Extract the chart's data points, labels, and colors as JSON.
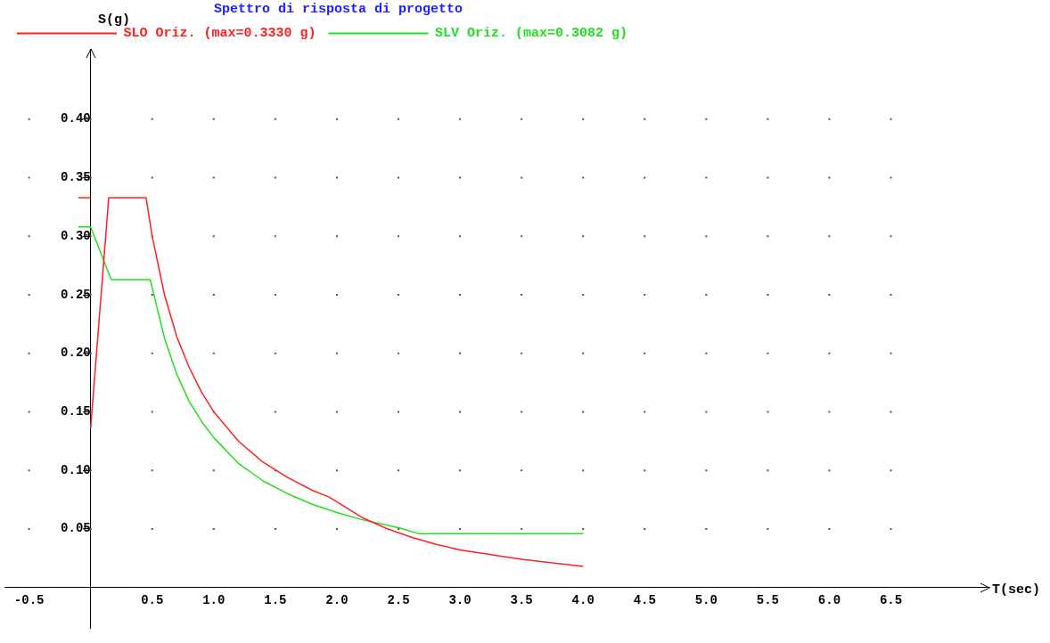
{
  "chart_data": {
    "type": "line",
    "title": "Spettro di risposta di progetto",
    "xlabel": "T(sec)",
    "ylabel": "S(g)",
    "xlim": [
      -0.7,
      7.3
    ],
    "ylim": [
      -0.035,
      0.46
    ],
    "xticks": [
      -0.5,
      {
        "value": 0,
        "label": null
      },
      0.5,
      {
        "value": 1,
        "label": "1.0"
      },
      1.5,
      {
        "value": 2,
        "label": "2.0"
      },
      2.5,
      {
        "value": 3,
        "label": "3.0"
      },
      3.5,
      {
        "value": 4,
        "label": "4.0"
      },
      4.5,
      {
        "value": 5,
        "label": "5.0"
      },
      5.5,
      {
        "value": 6,
        "label": "6.0"
      },
      6.5
    ],
    "yticks": [
      {
        "value": 0,
        "label": null
      },
      0.05,
      {
        "value": 0.1,
        "label": "0.10"
      },
      0.15,
      {
        "value": 0.2,
        "label": "0.20"
      },
      0.25,
      {
        "value": 0.3,
        "label": "0.30"
      },
      0.35,
      {
        "value": 0.4,
        "label": "0.40"
      }
    ],
    "grid": true,
    "legend": "top",
    "marker": "none",
    "line_style": "solid",
    "series": [
      {
        "name": "SLO Oriz. (max=0.3330 g)",
        "color": "#ff2020",
        "x": [
          0,
          0.147,
          0.45,
          0.5,
          0.6,
          0.7,
          0.8,
          0.9,
          1.0,
          1.2,
          1.4,
          1.6,
          1.8,
          1.94,
          2.2,
          2.4,
          2.6,
          2.8,
          3.0,
          3.25,
          3.5,
          3.75,
          4.0
        ],
        "values": [
          0.136,
          0.333,
          0.333,
          0.3,
          0.25,
          0.214,
          0.188,
          0.167,
          0.15,
          0.125,
          0.107,
          0.094,
          0.083,
          0.077,
          0.06,
          0.0505,
          0.043,
          0.037,
          0.032,
          0.028,
          0.024,
          0.021,
          0.018
        ]
      },
      {
        "name": "SLV Oriz. (max=0.3082 g)",
        "color": "#20e020",
        "x": [
          0,
          0.167,
          0.484,
          0.6,
          0.7,
          0.8,
          0.9,
          1.0,
          1.2,
          1.4,
          1.6,
          1.8,
          2.0,
          2.2,
          2.5,
          2.665,
          4.0
        ],
        "values": [
          0.308,
          0.263,
          0.263,
          0.213,
          0.182,
          0.159,
          0.142,
          0.128,
          0.106,
          0.091,
          0.08,
          0.071,
          0.064,
          0.058,
          0.051,
          0.046,
          0.046
        ]
      },
      {
        "color": "#ff2020",
        "x": [
          -0.1,
          0
        ],
        "values": [
          0.333,
          0.333
        ]
      },
      {
        "color": "#20e020",
        "x": [
          -0.1,
          0
        ],
        "values": [
          0.308,
          0.308
        ]
      }
    ]
  }
}
